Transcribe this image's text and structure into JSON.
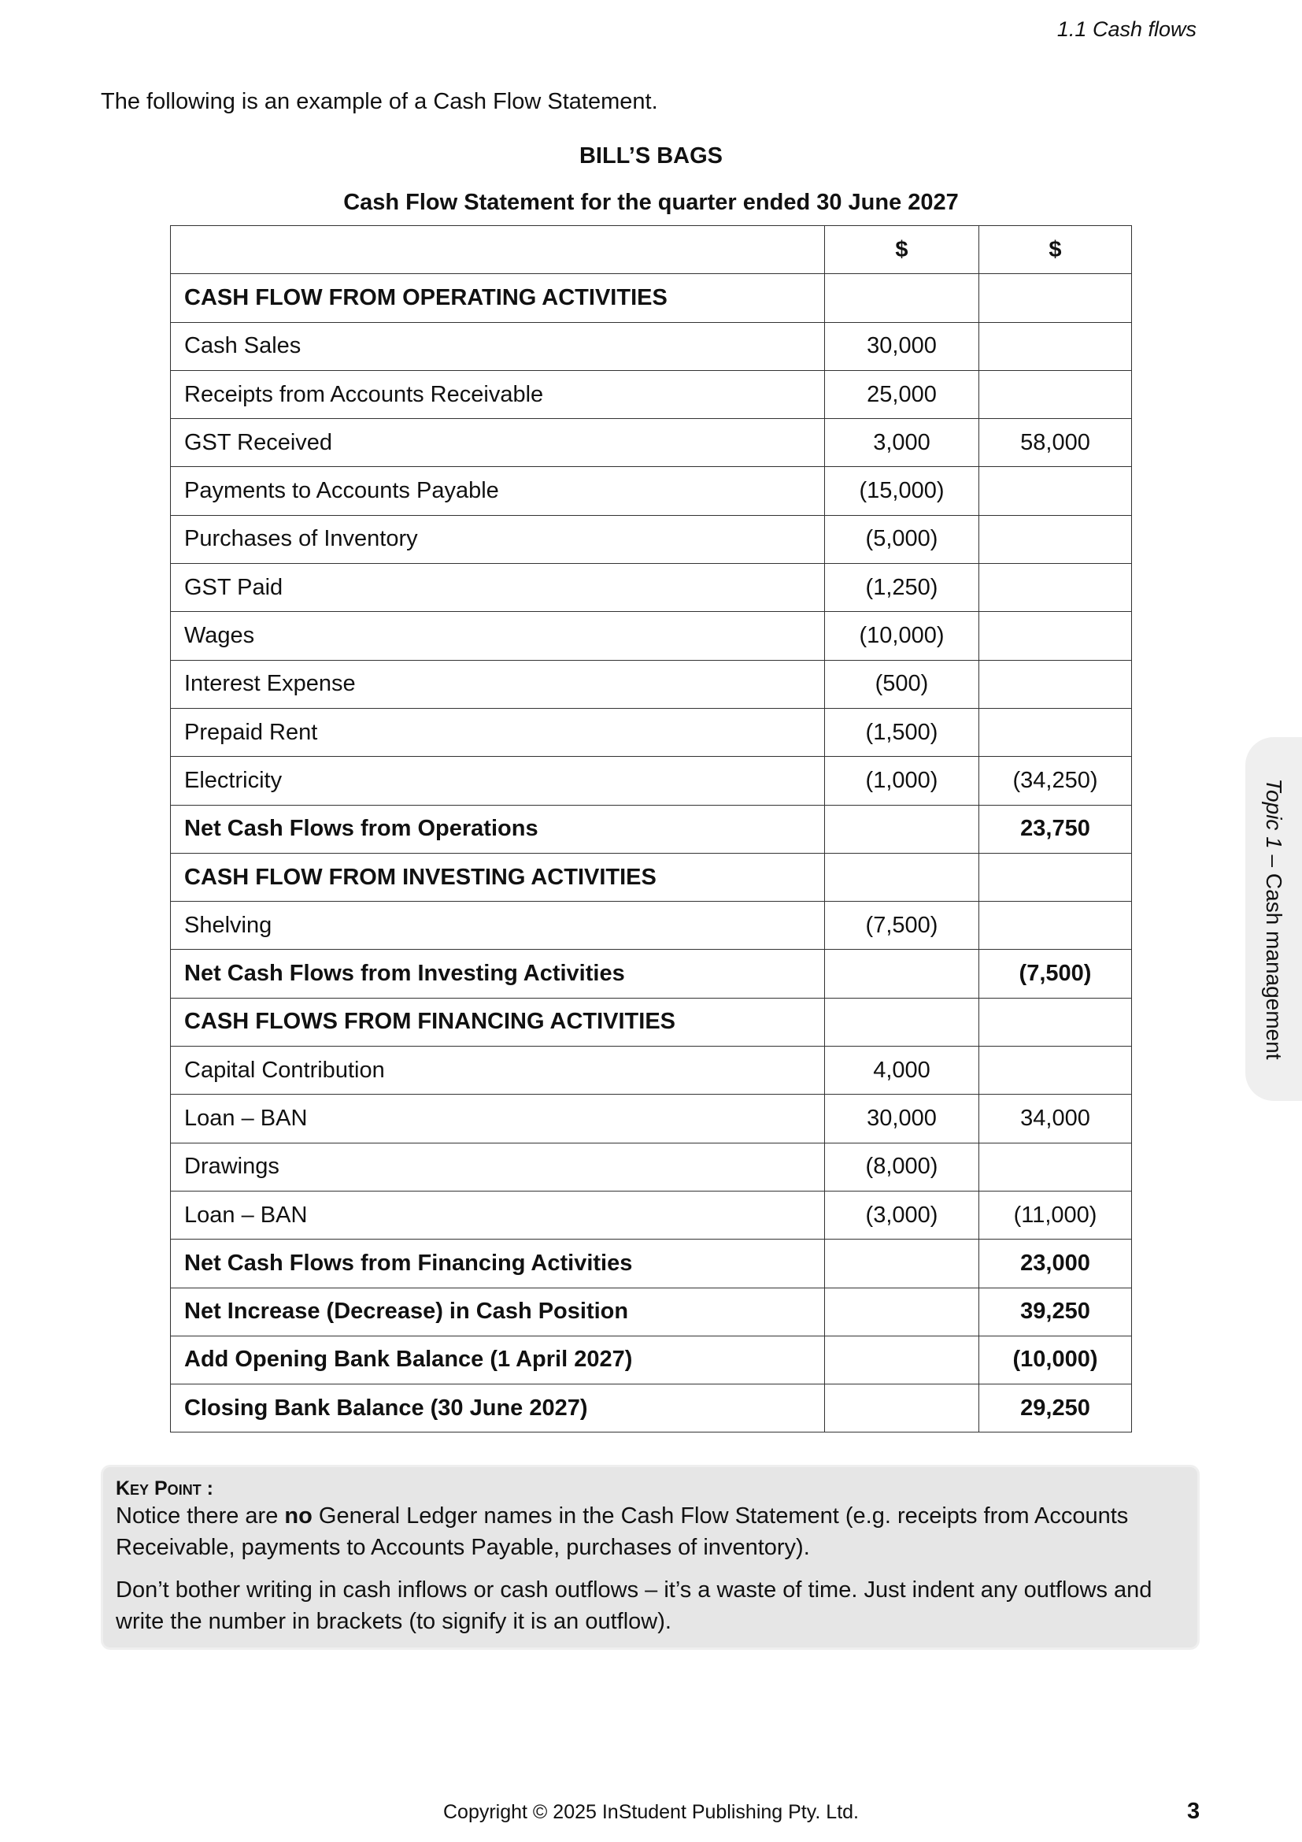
{
  "header": {
    "section": "1.1 Cash flows"
  },
  "intro": "The following is an example of a Cash Flow Statement.",
  "business_name": "BILL’S BAGS",
  "statement_title": "Cash Flow Statement for the quarter ended 30 June 2027",
  "table": {
    "header": [
      "",
      "$",
      "$"
    ],
    "rows": [
      {
        "label": "CASH FLOW FROM OPERATING ACTIVITIES",
        "a": "",
        "b": "",
        "bold": true
      },
      {
        "label": "Cash Sales",
        "a": "30,000",
        "b": ""
      },
      {
        "label": "Receipts from Accounts Receivable",
        "a": "25,000",
        "b": ""
      },
      {
        "label": "GST Received",
        "a": "3,000",
        "b": "58,000"
      },
      {
        "label": "Payments to Accounts Payable",
        "a": "(15,000)",
        "b": ""
      },
      {
        "label": "Purchases of Inventory",
        "a": "(5,000)",
        "b": ""
      },
      {
        "label": "GST Paid",
        "a": "(1,250)",
        "b": ""
      },
      {
        "label": "Wages",
        "a": "(10,000)",
        "b": ""
      },
      {
        "label": "Interest Expense",
        "a": "(500)",
        "b": ""
      },
      {
        "label": "Prepaid Rent",
        "a": "(1,500)",
        "b": ""
      },
      {
        "label": "Electricity",
        "a": "(1,000)",
        "b": "(34,250)"
      },
      {
        "label": "Net Cash Flows from Operations",
        "a": "",
        "b": "23,750",
        "bold": true
      },
      {
        "label": "CASH FLOW FROM INVESTING ACTIVITIES",
        "a": "",
        "b": "",
        "bold": true
      },
      {
        "label": "Shelving",
        "a": "(7,500)",
        "b": ""
      },
      {
        "label": "Net Cash Flows from Investing Activities",
        "a": "",
        "b": "(7,500)",
        "bold": true
      },
      {
        "label": "CASH FLOWS FROM FINANCING ACTIVITIES",
        "a": "",
        "b": "",
        "bold": true
      },
      {
        "label": "Capital Contribution",
        "a": "4,000",
        "b": ""
      },
      {
        "label": "Loan – BAN",
        "a": "30,000",
        "b": "34,000"
      },
      {
        "label": "Drawings",
        "a": "(8,000)",
        "b": ""
      },
      {
        "label": "Loan – BAN",
        "a": "(3,000)",
        "b": "(11,000)"
      },
      {
        "label": "Net Cash Flows from Financing Activities",
        "a": "",
        "b": "23,000",
        "bold": true
      },
      {
        "label": "Net Increase (Decrease) in Cash Position",
        "a": "",
        "b": "39,250",
        "bold": true
      },
      {
        "label": "Add Opening Bank Balance (1 April 2027)",
        "a": "",
        "b": "(10,000)",
        "bold": true
      },
      {
        "label": "Closing Bank Balance (30 June 2027)",
        "a": "",
        "b": "29,250",
        "bold": true
      }
    ]
  },
  "key_point": {
    "heading": "Key Point :",
    "p1_before": "Notice there are ",
    "p1_bold": "no",
    "p1_after": " General Ledger names in the Cash Flow Statement (e.g.  receipts from Accounts Receivable, payments to Accounts Payable, purchases of inventory).",
    "p2": "Don’t bother writing in cash inflows or cash outflows – it’s a waste of time. Just indent any outflows and write the number in brackets (to signify it is an outflow)."
  },
  "side_tab": {
    "italic": "Topic 1",
    "rest": " – Cash management"
  },
  "footer": {
    "copyright": "Copyright © 2025 InStudent Publishing Pty. Ltd.",
    "page": "3"
  }
}
